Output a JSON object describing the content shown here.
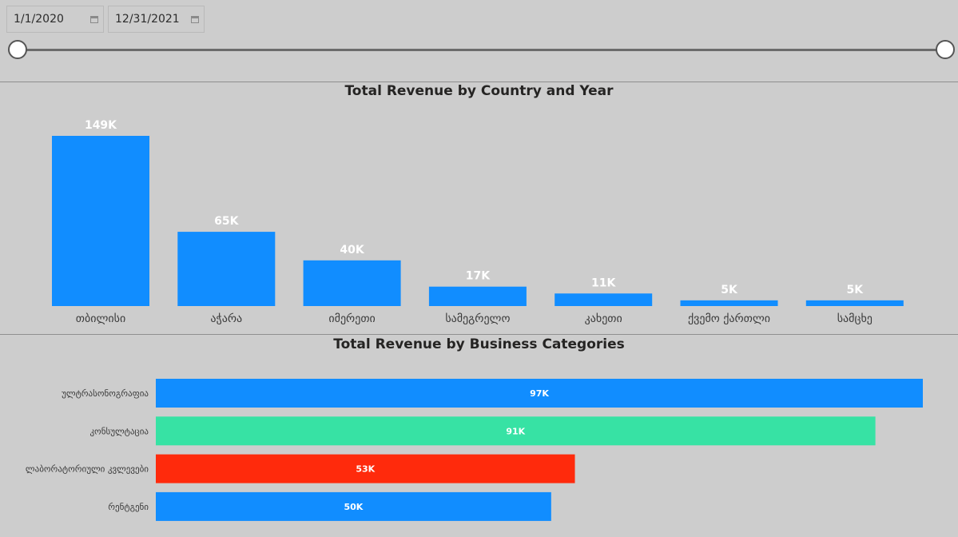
{
  "filters": {
    "start_date": "1/1/2020",
    "end_date": "12/31/2021"
  },
  "colors": {
    "blue": "#118dff",
    "teal": "#37e2a4",
    "red": "#ff2a0c"
  },
  "chart_data": [
    {
      "type": "bar",
      "orientation": "vertical",
      "title": "Total Revenue by Country and Year",
      "categories": [
        "თბილისი",
        "აჭარა",
        "იმერეთი",
        "სამეგრელო",
        "კახეთი",
        "ქვემო ქართლი",
        "სამცხე"
      ],
      "values": [
        149,
        65,
        40,
        17,
        11,
        5,
        5
      ],
      "data_labels": [
        "149K",
        "65K",
        "40K",
        "17K",
        "11K",
        "5K",
        "5K"
      ],
      "unit": "K",
      "ylim": [
        0,
        149
      ],
      "grid": false
    },
    {
      "type": "bar",
      "orientation": "horizontal",
      "title": "Total Revenue by Business Categories",
      "categories": [
        "ულტრასონოგრაფია",
        "კონსულტაცია",
        "ლაბორატორიული კვლევები",
        "რენტგენი"
      ],
      "values": [
        97,
        91,
        53,
        50
      ],
      "data_labels": [
        "97K",
        "91K",
        "53K",
        "50K"
      ],
      "bar_colors": [
        "#118dff",
        "#37e2a4",
        "#ff2a0c",
        "#118dff"
      ],
      "unit": "K",
      "xlim": [
        0,
        97
      ],
      "grid": false
    }
  ]
}
